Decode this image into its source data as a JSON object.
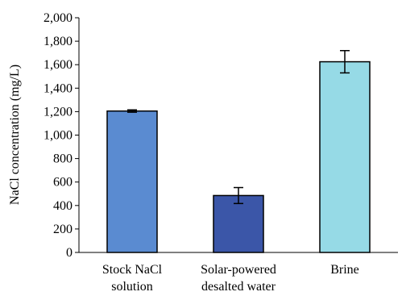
{
  "chart_data": {
    "type": "bar",
    "title": "",
    "xlabel": "",
    "ylabel": "NaCl concentration  (mg/L)",
    "ylim": [
      0,
      2000
    ],
    "yticks": [
      "0",
      "200",
      "400",
      "600",
      "800",
      "1,000",
      "1,200",
      "1,400",
      "1,600",
      "1,800",
      "2,000"
    ],
    "ytick_values": [
      0,
      200,
      400,
      600,
      800,
      1000,
      1200,
      1400,
      1600,
      1800,
      2000
    ],
    "grid": false,
    "categories": [
      [
        "Stock NaCl",
        "solution"
      ],
      [
        "Solar-powered",
        "desalted water"
      ],
      [
        "Brine"
      ]
    ],
    "values": [
      1205,
      485,
      1625
    ],
    "errors": [
      10,
      68,
      95
    ],
    "bar_colors": [
      "#5A8BD1",
      "#3B56A8",
      "#96DAE6"
    ]
  }
}
